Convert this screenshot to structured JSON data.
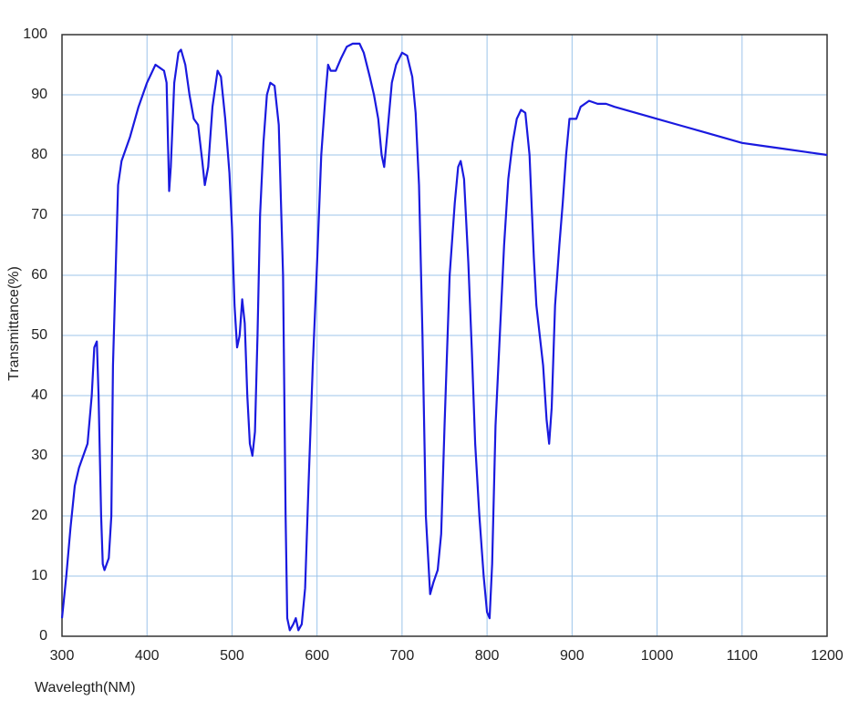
{
  "chart_data": {
    "type": "line",
    "x_label": "Wavelegth(NM)",
    "y_label": "Transmittance(%)",
    "xlim": [
      300,
      1200
    ],
    "ylim": [
      0,
      100
    ],
    "xticks": [
      300,
      400,
      500,
      600,
      700,
      800,
      900,
      1000,
      1100,
      1200
    ],
    "yticks": [
      0,
      10,
      20,
      30,
      40,
      50,
      60,
      70,
      80,
      90,
      100
    ],
    "grid": true,
    "grid_color": "#9cc4ea",
    "x": [
      300,
      305,
      310,
      315,
      320,
      330,
      335,
      338,
      341,
      343,
      346,
      348,
      350,
      355,
      358,
      360,
      363,
      366,
      370,
      380,
      390,
      400,
      410,
      415,
      420,
      423,
      426,
      428,
      432,
      437,
      440,
      445,
      450,
      455,
      460,
      465,
      468,
      472,
      477,
      483,
      487,
      492,
      497,
      500,
      503,
      506,
      509,
      512,
      515,
      518,
      521,
      524,
      527,
      530,
      533,
      537,
      541,
      545,
      550,
      555,
      560,
      563,
      565,
      568,
      572,
      575,
      578,
      582,
      586,
      590,
      595,
      600,
      605,
      610,
      613,
      616,
      622,
      628,
      635,
      642,
      650,
      655,
      662,
      667,
      672,
      676,
      679,
      683,
      688,
      693,
      700,
      706,
      712,
      716,
      720,
      724,
      728,
      733,
      737,
      742,
      746,
      750,
      756,
      762,
      766,
      769,
      773,
      778,
      782,
      786,
      791,
      796,
      800,
      803,
      806,
      810,
      815,
      820,
      825,
      830,
      835,
      840,
      845,
      850,
      855,
      858,
      862,
      866,
      870,
      873,
      876,
      880,
      885,
      889,
      893,
      897,
      900,
      905,
      910,
      920,
      930,
      940,
      950,
      975,
      1000,
      1025,
      1050,
      1075,
      1100,
      1125,
      1150,
      1175,
      1200
    ],
    "series": [
      {
        "color": "#1a1adf",
        "values": [
          3,
          10,
          18,
          25,
          28,
          32,
          40,
          48,
          49,
          40,
          20,
          12,
          11,
          13,
          20,
          45,
          60,
          75,
          79,
          83,
          88,
          92,
          95,
          94.5,
          94,
          92,
          74,
          78,
          92,
          97,
          97.5,
          95,
          90,
          86,
          85,
          79,
          75,
          78,
          88,
          94,
          93,
          86,
          77,
          68,
          55,
          48,
          50,
          56,
          52,
          40,
          32,
          30,
          34,
          50,
          70,
          82,
          90,
          92,
          91.5,
          85,
          60,
          20,
          3,
          1,
          2,
          3,
          1,
          2,
          8,
          25,
          45,
          62,
          80,
          90,
          95,
          94,
          94,
          96,
          98,
          98.5,
          98.5,
          97,
          93,
          90,
          86,
          80,
          78,
          84,
          92,
          95,
          97,
          96.5,
          93,
          87,
          75,
          50,
          20,
          7,
          9,
          11,
          17,
          35,
          60,
          72,
          78,
          79,
          76,
          62,
          48,
          32,
          20,
          10,
          4,
          3,
          12,
          35,
          50,
          65,
          76,
          82,
          86,
          87.5,
          87,
          80,
          63,
          55,
          50,
          45,
          36,
          32,
          38,
          55,
          65,
          72,
          80,
          86,
          86,
          86,
          88,
          89,
          88.5,
          88.5,
          88,
          87,
          86,
          85,
          84,
          83,
          82,
          81.5,
          81,
          80.5,
          80
        ]
      }
    ]
  }
}
